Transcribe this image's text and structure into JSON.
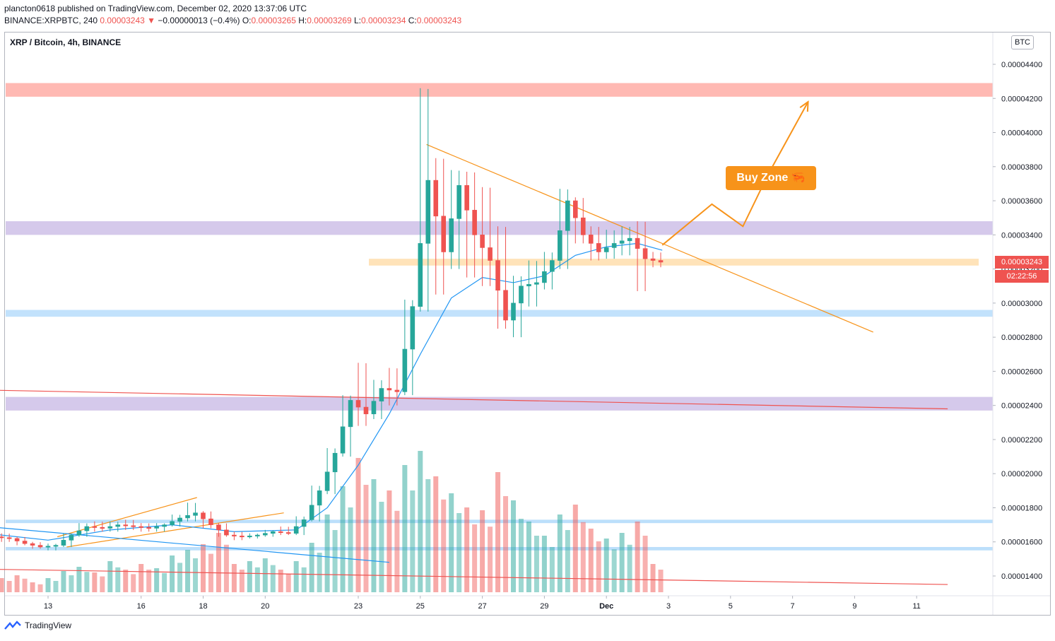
{
  "header": {
    "publisher": "plancton0618 published on TradingView.com, December 02, 2020 13:37:06 UTC",
    "symbol_line": "BINANCE:XRPBTC, 240",
    "last": "0.00003243",
    "arrow": "▼",
    "change": "−0.00000013 (−0.4%)",
    "o_label": "O:",
    "o_value": "0.00003265",
    "h_label": "H:",
    "h_value": "0.00003269",
    "l_label": "L:",
    "l_value": "0.00003234",
    "c_label": "C:",
    "c_value": "0.00003243"
  },
  "legend": "XRP / Bitcoin, 4h, BINANCE",
  "currency_button": "BTC",
  "price_tag": {
    "price": "0.00003243",
    "countdown": "02:22:56"
  },
  "annotation": {
    "label": "Buy Zone",
    "emoji": "🦐"
  },
  "footer": {
    "brand": "TradingView"
  },
  "colors": {
    "up": "#26a69a",
    "down": "#ef5350",
    "ema": "#2196f3",
    "trend": "#f7931a",
    "resistance": "#ff8a80",
    "zone_purple": "#b39ddb",
    "zone_blue": "#90caf9",
    "zone_orange": "#ffcc80"
  },
  "chart_data": {
    "type": "candlestick",
    "title": "XRP / Bitcoin, 4h, BINANCE",
    "y_axis": {
      "range": [
        1.3e-05,
        4.6e-05
      ],
      "ticks": [
        "0.00004400",
        "0.00004200",
        "0.00004000",
        "0.00003800",
        "0.00003600",
        "0.00003400",
        "0.00003200",
        "0.00003000",
        "0.00002800",
        "0.00002600",
        "0.00002400",
        "0.00002200",
        "0.00002000",
        "0.00001800",
        "0.00001600",
        "0.00001400"
      ],
      "tick_values": [
        4.4e-05,
        4.2e-05,
        4e-05,
        3.8e-05,
        3.6e-05,
        3.4e-05,
        3.2e-05,
        3e-05,
        2.8e-05,
        2.6e-05,
        2.4e-05,
        2.2e-05,
        2e-05,
        1.8e-05,
        1.6e-05,
        1.4e-05
      ]
    },
    "x_axis": {
      "ticks": [
        "13",
        "16",
        "18",
        "20",
        "23",
        "25",
        "27",
        "29",
        "Dec",
        "3",
        "5",
        "7",
        "9",
        "11"
      ],
      "tick_days": [
        12,
        15,
        17,
        19,
        22,
        24,
        26,
        28,
        30,
        32,
        34,
        36,
        38,
        40
      ]
    },
    "candles_ohlc_by_day": [
      [
        10.0,
        1.63e-05,
        1.64e-05,
        1.61e-05,
        1.63e-05
      ],
      [
        10.5,
        1.63e-05,
        1.65e-05,
        1.6e-05,
        1.62e-05
      ],
      [
        11.0,
        1.62e-05,
        1.63e-05,
        1.58e-05,
        1.59e-05
      ],
      [
        11.5,
        1.59e-05,
        1.6e-05,
        1.56e-05,
        1.57e-05
      ],
      [
        12.0,
        1.57e-05,
        1.59e-05,
        1.55e-05,
        1.58e-05
      ],
      [
        12.5,
        1.58e-05,
        1.65e-05,
        1.57e-05,
        1.64e-05
      ],
      [
        13.0,
        1.64e-05,
        1.71e-05,
        1.63e-05,
        1.69e-05
      ],
      [
        13.5,
        1.69e-05,
        1.72e-05,
        1.66e-05,
        1.68e-05
      ],
      [
        14.0,
        1.68e-05,
        1.72e-05,
        1.66e-05,
        1.7e-05
      ],
      [
        14.5,
        1.7e-05,
        1.73e-05,
        1.67e-05,
        1.69e-05
      ],
      [
        15.0,
        1.69e-05,
        1.71e-05,
        1.66e-05,
        1.68e-05
      ],
      [
        15.5,
        1.68e-05,
        1.71e-05,
        1.66e-05,
        1.7e-05
      ],
      [
        16.0,
        1.7e-05,
        1.76e-05,
        1.69e-05,
        1.74e-05
      ],
      [
        16.5,
        1.74e-05,
        1.83e-05,
        1.72e-05,
        1.77e-05
      ],
      [
        17.0,
        1.77e-05,
        1.78e-05,
        1.68e-05,
        1.7e-05
      ],
      [
        17.5,
        1.7e-05,
        1.71e-05,
        1.63e-05,
        1.64e-05
      ],
      [
        18.0,
        1.64e-05,
        1.66e-05,
        1.61e-05,
        1.63e-05
      ],
      [
        18.5,
        1.63e-05,
        1.65e-05,
        1.62e-05,
        1.64e-05
      ],
      [
        19.0,
        1.64e-05,
        1.67e-05,
        1.63e-05,
        1.66e-05
      ],
      [
        19.5,
        1.66e-05,
        1.69e-05,
        1.64e-05,
        1.65e-05
      ],
      [
        20.0,
        1.65e-05,
        1.75e-05,
        1.64e-05,
        1.73e-05
      ],
      [
        20.5,
        1.73e-05,
        1.93e-05,
        1.72e-05,
        1.9e-05
      ],
      [
        21.0,
        1.9e-05,
        2.15e-05,
        1.88e-05,
        2.12e-05
      ],
      [
        21.5,
        2.12e-05,
        2.46e-05,
        2.1e-05,
        2.43e-05
      ],
      [
        22.0,
        2.43e-05,
        2.65e-05,
        2.28e-05,
        2.35e-05
      ],
      [
        22.5,
        2.35e-05,
        2.55e-05,
        2.32e-05,
        2.5e-05
      ],
      [
        23.0,
        2.5e-05,
        2.62e-05,
        2.4e-05,
        2.48e-05
      ],
      [
        23.5,
        2.48e-05,
        3.02e-05,
        2.46e-05,
        2.98e-05
      ],
      [
        24.0,
        2.98e-05,
        4.26e-05,
        2.95e-05,
        3.72e-05
      ],
      [
        24.5,
        3.72e-05,
        3.85e-05,
        3.05e-05,
        3.3e-05
      ],
      [
        25.0,
        3.3e-05,
        3.78e-05,
        3.2e-05,
        3.69e-05
      ],
      [
        25.5,
        3.69e-05,
        3.77e-05,
        3.15e-05,
        3.4e-05
      ],
      [
        26.0,
        3.4e-05,
        3.68e-05,
        3.1e-05,
        3.25e-05
      ],
      [
        26.5,
        3.25e-05,
        3.45e-05,
        2.85e-05,
        2.9e-05
      ],
      [
        27.0,
        2.9e-05,
        3.16e-05,
        2.8e-05,
        3.1e-05
      ],
      [
        27.5,
        3.1e-05,
        3.25e-05,
        2.98e-05,
        3.12e-05
      ],
      [
        28.0,
        3.12e-05,
        3.3e-05,
        3.08e-05,
        3.25e-05
      ],
      [
        28.5,
        3.25e-05,
        3.67e-05,
        3.2e-05,
        3.6e-05
      ],
      [
        29.0,
        3.6e-05,
        3.62e-05,
        3.35e-05,
        3.4e-05
      ],
      [
        29.5,
        3.4e-05,
        3.45e-05,
        3.25e-05,
        3.3e-05
      ],
      [
        30.0,
        3.3e-05,
        3.43e-05,
        3.26e-05,
        3.35e-05
      ],
      [
        30.5,
        3.35e-05,
        3.45e-05,
        3.28e-05,
        3.38e-05
      ],
      [
        31.0,
        3.38e-05,
        3.48e-05,
        3.07e-05,
        3.26e-05
      ],
      [
        31.5,
        3.26e-05,
        3.3e-05,
        3.21e-05,
        3.24e-05
      ]
    ],
    "ema_line": [
      [
        10,
        1.65e-05
      ],
      [
        12,
        1.61e-05
      ],
      [
        14,
        1.67e-05
      ],
      [
        16,
        1.7e-05
      ],
      [
        18,
        1.66e-05
      ],
      [
        20,
        1.67e-05
      ],
      [
        21,
        1.8e-05
      ],
      [
        22,
        2.05e-05
      ],
      [
        23,
        2.35e-05
      ],
      [
        24,
        2.7e-05
      ],
      [
        25,
        3.03e-05
      ],
      [
        26,
        3.15e-05
      ],
      [
        27,
        3.12e-05
      ],
      [
        28,
        3.16e-05
      ],
      [
        29,
        3.28e-05
      ],
      [
        30,
        3.33e-05
      ],
      [
        31,
        3.35e-05
      ],
      [
        31.8,
        3.31e-05
      ]
    ],
    "volume_relative": [
      0.08,
      0.1,
      0.12,
      0.07,
      0.1,
      0.15,
      0.18,
      0.14,
      0.22,
      0.16,
      0.2,
      0.17,
      0.26,
      0.3,
      0.34,
      0.42,
      0.2,
      0.22,
      0.24,
      0.16,
      0.22,
      0.35,
      0.55,
      0.75,
      0.95,
      0.8,
      0.72,
      0.9,
      1.0,
      0.82,
      0.7,
      0.6,
      0.58,
      0.85,
      0.65,
      0.5,
      0.4,
      0.55,
      0.62,
      0.45,
      0.38,
      0.42,
      0.5,
      0.2
    ],
    "horizontal_zones": [
      {
        "from": 4.21e-05,
        "to": 4.29e-05
      },
      {
        "from": 3.4e-05,
        "to": 3.48e-05
      },
      {
        "from": 3.22e-05,
        "to": 3.26e-05
      },
      {
        "from": 2.92e-05,
        "to": 2.96e-05
      },
      {
        "from": 2.37e-05,
        "to": 2.45e-05
      },
      {
        "from": 1.71e-05,
        "to": 1.73e-05
      },
      {
        "from": 1.55e-05,
        "to": 1.57e-05
      }
    ],
    "trend_lines": [
      {
        "from": [
          24.2,
          3.93e-05
        ],
        "to": [
          38.6,
          2.83e-05
        ]
      },
      {
        "from": [
          10.0,
          2.49e-05
        ],
        "to": [
          41.0,
          2.38e-05
        ]
      },
      {
        "from": [
          10.0,
          1.44e-05
        ],
        "to": [
          41.0,
          1.35e-05
        ]
      },
      {
        "from": [
          12.6,
          1.57e-05
        ],
        "to": [
          19.6,
          1.77e-05
        ]
      },
      {
        "from": [
          12.3,
          1.63e-05
        ],
        "to": [
          16.8,
          1.86e-05
        ]
      },
      {
        "from": [
          10.0,
          1.69e-05
        ],
        "to": [
          23.0,
          1.48e-05
        ]
      }
    ],
    "projection_path": [
      [
        31.8,
        3.34e-05
      ],
      [
        33.4,
        3.58e-05
      ],
      [
        34.4,
        3.45e-05
      ],
      [
        35.2,
        3.75e-05
      ],
      [
        36.5,
        4.18e-05
      ]
    ]
  }
}
